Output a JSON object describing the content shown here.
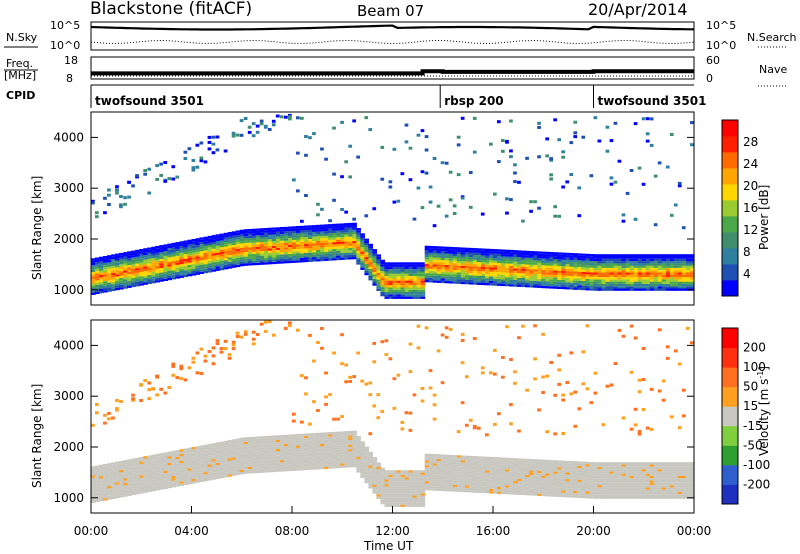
{
  "header": {
    "title": "Blackstone (fitACF)",
    "beam": "Beam 07",
    "date": "20/Apr/2014"
  },
  "summary_panels": {
    "nsky_label": "N.Sky",
    "nsearch_label": "N.Search",
    "freq_label_1": "Freq.",
    "freq_label_2": "[MHz]",
    "nave_label": "Nave",
    "cpid_label": "CPID",
    "nsky_ticks": [
      "10^5",
      "10^0"
    ],
    "nsearch_ticks": [
      "10^5",
      "10^0"
    ],
    "freq_ticks": [
      "18",
      "8"
    ],
    "nave_ticks": [
      "60",
      "0"
    ],
    "cpid_segments": [
      {
        "label": "twofsound 3501",
        "start_hour": 0,
        "end_hour": 13.9
      },
      {
        "label": "rbsp 200",
        "start_hour": 13.9,
        "end_hour": 20.0
      },
      {
        "label": "twofsound 3501",
        "start_hour": 20.0,
        "end_hour": 24
      }
    ],
    "freq_mhz": [
      {
        "start_hour": 0,
        "end_hour": 13.2,
        "value": 10.4
      },
      {
        "start_hour": 13.2,
        "end_hour": 14.0,
        "value": 11.6
      },
      {
        "start_hour": 14.0,
        "end_hour": 20.0,
        "value": 11.2
      },
      {
        "start_hour": 20.0,
        "end_hour": 24,
        "value": 11.6
      }
    ]
  },
  "chart_data": [
    {
      "type": "heatmap",
      "name": "power-panel",
      "ylabel": "Slant Range [km]",
      "xlabel": "",
      "x_range_hours": [
        0,
        24
      ],
      "ylim": [
        700,
        4500
      ],
      "y_ticks": [
        "1000",
        "2000",
        "3000",
        "4000"
      ],
      "colorbar": {
        "label": "Power [dB]",
        "ticks": [
          "28",
          "24",
          "20",
          "16",
          "12",
          "8",
          "4"
        ],
        "colors": [
          "#0000ff",
          "#1f4fb0",
          "#2f7f9f",
          "#3f8f6f",
          "#4aa84a",
          "#98cc30",
          "#ffd700",
          "#ffa500",
          "#ff6a00",
          "#ff2000",
          "#ff0000"
        ]
      }
    },
    {
      "type": "heatmap",
      "name": "velocity-panel",
      "ylabel": "Slant Range [km]",
      "xlabel": "Time UT",
      "x_range_hours": [
        0,
        24
      ],
      "ylim": [
        700,
        4500
      ],
      "y_ticks": [
        "1000",
        "2000",
        "3000",
        "4000"
      ],
      "x_ticks": [
        "00:00",
        "04:00",
        "08:00",
        "12:00",
        "16:00",
        "20:00",
        "00:00"
      ],
      "colorbar": {
        "label_main": "Velocity [m s",
        "label_sup": "-1",
        "label_end": "]",
        "ticks": [
          "200",
          "100",
          "50",
          "15",
          "-15",
          "-50",
          "-100",
          "-200"
        ],
        "colors": [
          "#1f2fbf",
          "#2f5fcf",
          "#2fa02f",
          "#7fcf3f",
          "#c8c8c0",
          "#ffa020",
          "#ff7020",
          "#ff3010",
          "#ff0000"
        ]
      }
    }
  ]
}
